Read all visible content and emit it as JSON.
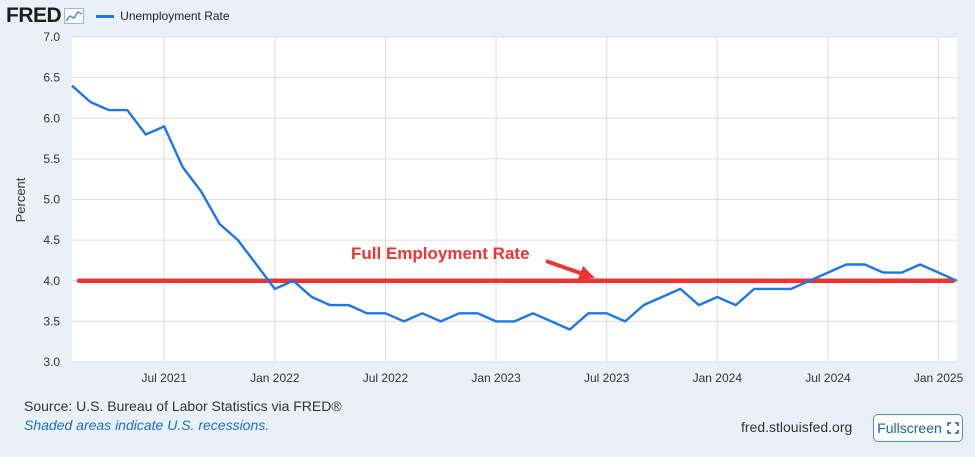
{
  "header": {
    "logo_text": "FRED",
    "logo_icon": "fred-chart-icon",
    "legend_label": "Unemployment Rate"
  },
  "chart_data": {
    "type": "line",
    "ylabel": "Percent",
    "ylim": [
      3.0,
      7.0
    ],
    "y_ticks": [
      "3.0",
      "3.5",
      "4.0",
      "4.5",
      "5.0",
      "5.5",
      "6.0",
      "6.5",
      "7.0"
    ],
    "x_tick_labels": [
      "Jul 2021",
      "Jan 2022",
      "Jul 2022",
      "Jan 2023",
      "Jul 2023",
      "Jan 2024",
      "Jul 2024",
      "Jan 2025"
    ],
    "x_range": [
      "2021-02",
      "2025-02"
    ],
    "grid": true,
    "series": [
      {
        "name": "Unemployment Rate",
        "color": "#1f77e4",
        "x": [
          "2021-02",
          "2021-03",
          "2021-04",
          "2021-05",
          "2021-06",
          "2021-07",
          "2021-08",
          "2021-09",
          "2021-10",
          "2021-11",
          "2021-12",
          "2022-01",
          "2022-02",
          "2022-03",
          "2022-04",
          "2022-05",
          "2022-06",
          "2022-07",
          "2022-08",
          "2022-09",
          "2022-10",
          "2022-11",
          "2022-12",
          "2023-01",
          "2023-02",
          "2023-03",
          "2023-04",
          "2023-05",
          "2023-06",
          "2023-07",
          "2023-08",
          "2023-09",
          "2023-10",
          "2023-11",
          "2023-12",
          "2024-01",
          "2024-02",
          "2024-03",
          "2024-04",
          "2024-05",
          "2024-06",
          "2024-07",
          "2024-08",
          "2024-09",
          "2024-10",
          "2024-11",
          "2024-12",
          "2025-01",
          "2025-02"
        ],
        "values": [
          6.4,
          6.2,
          6.1,
          6.1,
          5.8,
          5.9,
          5.4,
          5.1,
          4.7,
          4.5,
          4.2,
          3.9,
          4.0,
          3.8,
          3.7,
          3.7,
          3.6,
          3.6,
          3.5,
          3.6,
          3.5,
          3.6,
          3.6,
          3.5,
          3.5,
          3.6,
          3.5,
          3.4,
          3.6,
          3.6,
          3.5,
          3.7,
          3.8,
          3.9,
          3.7,
          3.8,
          3.7,
          3.9,
          3.9,
          3.9,
          4.0,
          4.1,
          4.2,
          4.2,
          4.1,
          4.1,
          4.2,
          4.1,
          4.0
        ]
      }
    ],
    "reference_line": {
      "value": 4.0,
      "color": "#ee3333"
    },
    "annotation": {
      "text": "Full Employment Rate",
      "color": "#ee3333"
    }
  },
  "footer": {
    "source": "Source: U.S. Bureau of Labor Statistics via FRED®",
    "recession_note": "Shaded areas indicate U.S. recessions.",
    "site": "fred.stlouisfed.org",
    "fullscreen_label": "Fullscreen",
    "fullscreen_icon": "fullscreen-icon"
  }
}
